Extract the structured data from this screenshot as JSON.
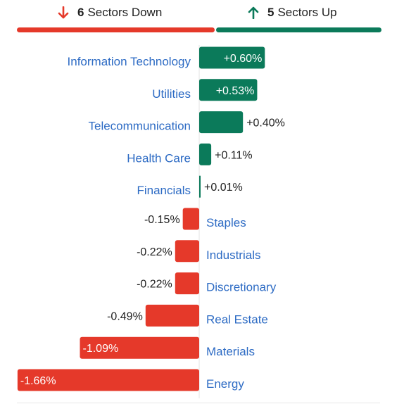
{
  "summary": {
    "down": {
      "count": "6",
      "label": "Sectors Down",
      "color": "#e5392a",
      "icon": "arrow-down-icon"
    },
    "up": {
      "count": "5",
      "label": "Sectors Up",
      "color": "#0b7a5a",
      "icon": "arrow-up-icon"
    }
  },
  "chart_data": {
    "type": "bar",
    "orientation": "horizontal",
    "unit": "%",
    "categories": [
      "Information Technology",
      "Utilities",
      "Telecommunication",
      "Health Care",
      "Financials",
      "Staples",
      "Industrials",
      "Discretionary",
      "Real Estate",
      "Materials",
      "Energy"
    ],
    "values": [
      0.6,
      0.53,
      0.4,
      0.11,
      0.01,
      -0.15,
      -0.22,
      -0.22,
      -0.49,
      -1.09,
      -1.66
    ],
    "labels": [
      "+0.60%",
      "+0.53%",
      "+0.40%",
      "+0.11%",
      "+0.01%",
      "-0.15%",
      "-0.22%",
      "-0.22%",
      "-0.49%",
      "-1.09%",
      "-1.66%"
    ],
    "colors": {
      "positive": "#0b7a5a",
      "negative": "#e5392a",
      "category_label": "#2d6bc4"
    }
  }
}
